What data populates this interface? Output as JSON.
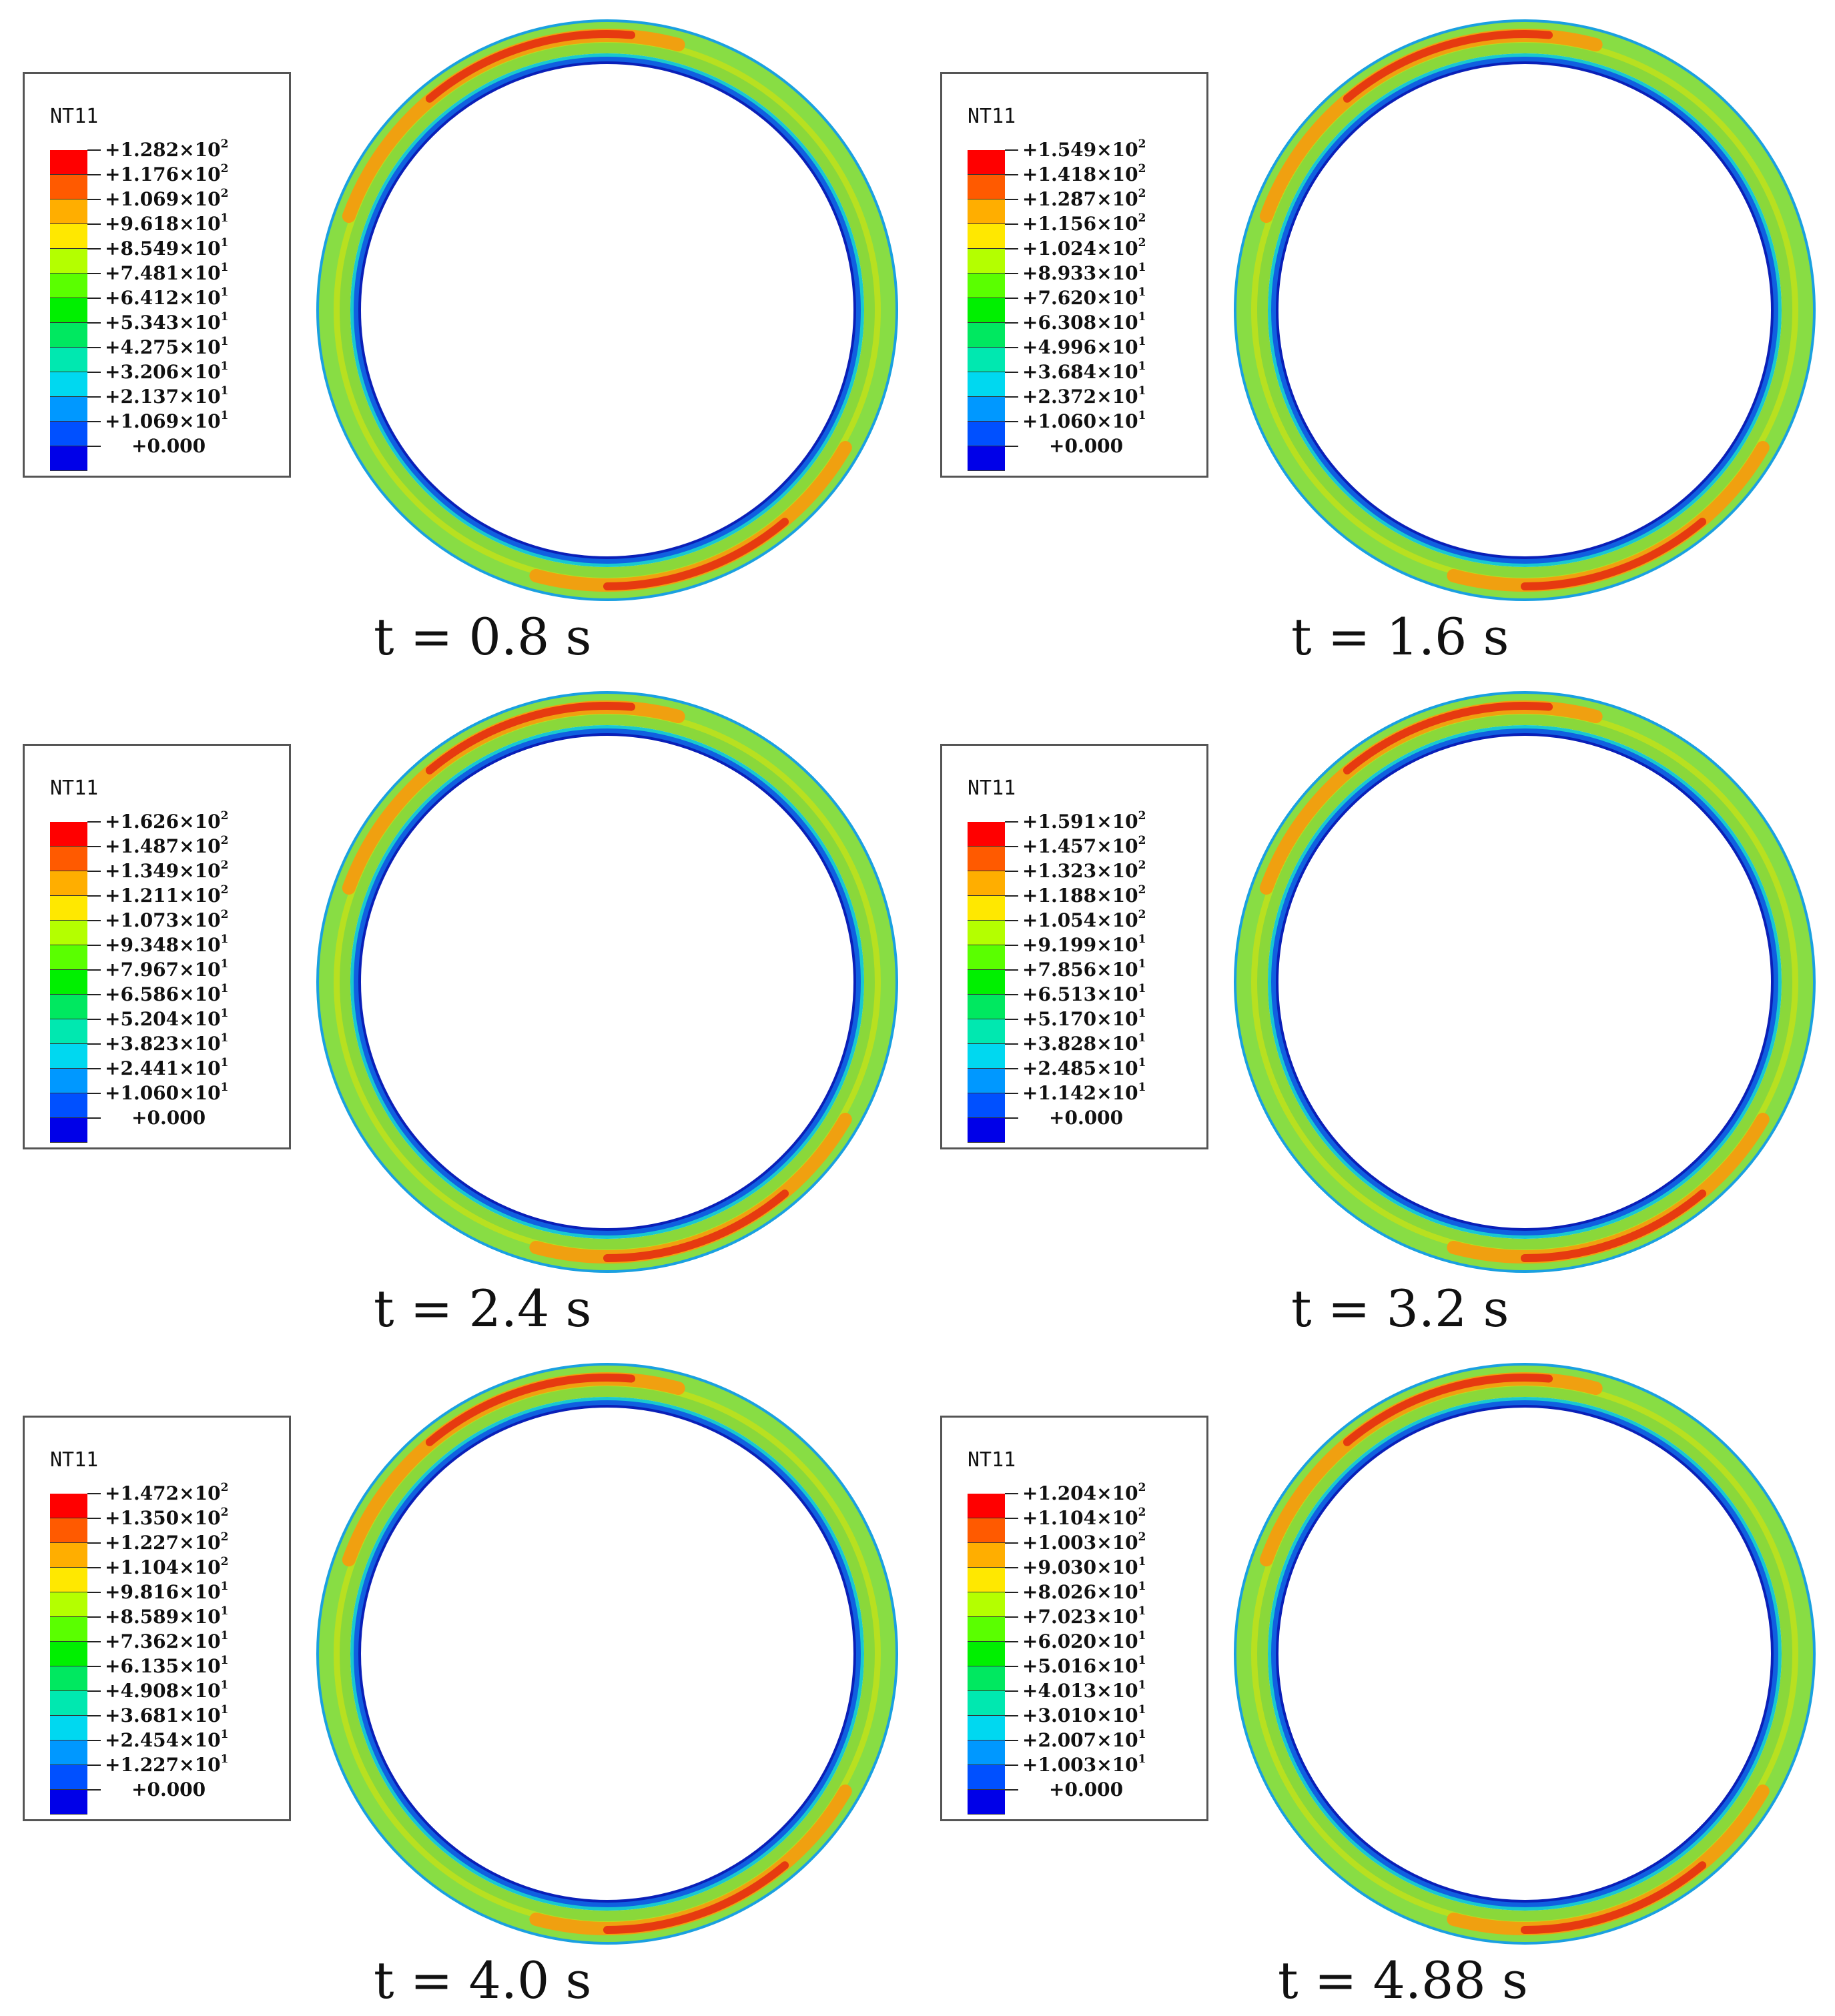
{
  "colors": {
    "legend_bands": [
      "#ff0000",
      "#ff5a00",
      "#ffae00",
      "#ffe800",
      "#b4ff00",
      "#5aff00",
      "#00f000",
      "#00e860",
      "#00e8b0",
      "#00d8f0",
      "#0098ff",
      "#0050ff",
      "#0000e8"
    ],
    "ring_base": "#7fdd3a"
  },
  "panels": [
    {
      "legend_title": "NT11",
      "time": "t = 0.8 s",
      "ticks": [
        {
          "m": "+1.282",
          "e": "2"
        },
        {
          "m": "+1.176",
          "e": "2"
        },
        {
          "m": "+1.069",
          "e": "2"
        },
        {
          "m": "+9.618",
          "e": "1"
        },
        {
          "m": "+8.549",
          "e": "1"
        },
        {
          "m": "+7.481",
          "e": "1"
        },
        {
          "m": "+6.412",
          "e": "1"
        },
        {
          "m": "+5.343",
          "e": "1"
        },
        {
          "m": "+4.275",
          "e": "1"
        },
        {
          "m": "+3.206",
          "e": "1"
        },
        {
          "m": "+2.137",
          "e": "1"
        },
        {
          "m": "+1.069",
          "e": "1"
        },
        {
          "m": "+0.000",
          "e": ""
        }
      ]
    },
    {
      "legend_title": "NT11",
      "time": "t = 1.6 s",
      "ticks": [
        {
          "m": "+1.549",
          "e": "2"
        },
        {
          "m": "+1.418",
          "e": "2"
        },
        {
          "m": "+1.287",
          "e": "2"
        },
        {
          "m": "+1.156",
          "e": "2"
        },
        {
          "m": "+1.024",
          "e": "2"
        },
        {
          "m": "+8.933",
          "e": "1"
        },
        {
          "m": "+7.620",
          "e": "1"
        },
        {
          "m": "+6.308",
          "e": "1"
        },
        {
          "m": "+4.996",
          "e": "1"
        },
        {
          "m": "+3.684",
          "e": "1"
        },
        {
          "m": "+2.372",
          "e": "1"
        },
        {
          "m": "+1.060",
          "e": "1"
        },
        {
          "m": "+0.000",
          "e": ""
        }
      ]
    },
    {
      "legend_title": "NT11",
      "time": "t = 2.4 s",
      "ticks": [
        {
          "m": "+1.626",
          "e": "2"
        },
        {
          "m": "+1.487",
          "e": "2"
        },
        {
          "m": "+1.349",
          "e": "2"
        },
        {
          "m": "+1.211",
          "e": "2"
        },
        {
          "m": "+1.073",
          "e": "2"
        },
        {
          "m": "+9.348",
          "e": "1"
        },
        {
          "m": "+7.967",
          "e": "1"
        },
        {
          "m": "+6.586",
          "e": "1"
        },
        {
          "m": "+5.204",
          "e": "1"
        },
        {
          "m": "+3.823",
          "e": "1"
        },
        {
          "m": "+2.441",
          "e": "1"
        },
        {
          "m": "+1.060",
          "e": "1"
        },
        {
          "m": "+0.000",
          "e": ""
        }
      ]
    },
    {
      "legend_title": "NT11",
      "time": "t = 3.2 s",
      "ticks": [
        {
          "m": "+1.591",
          "e": "2"
        },
        {
          "m": "+1.457",
          "e": "2"
        },
        {
          "m": "+1.323",
          "e": "2"
        },
        {
          "m": "+1.188",
          "e": "2"
        },
        {
          "m": "+1.054",
          "e": "2"
        },
        {
          "m": "+9.199",
          "e": "1"
        },
        {
          "m": "+7.856",
          "e": "1"
        },
        {
          "m": "+6.513",
          "e": "1"
        },
        {
          "m": "+5.170",
          "e": "1"
        },
        {
          "m": "+3.828",
          "e": "1"
        },
        {
          "m": "+2.485",
          "e": "1"
        },
        {
          "m": "+1.142",
          "e": "1"
        },
        {
          "m": "+0.000",
          "e": ""
        }
      ]
    },
    {
      "legend_title": "NT11",
      "time": "t = 4.0 s",
      "ticks": [
        {
          "m": "+1.472",
          "e": "2"
        },
        {
          "m": "+1.350",
          "e": "2"
        },
        {
          "m": "+1.227",
          "e": "2"
        },
        {
          "m": "+1.104",
          "e": "2"
        },
        {
          "m": "+9.816",
          "e": "1"
        },
        {
          "m": "+8.589",
          "e": "1"
        },
        {
          "m": "+7.362",
          "e": "1"
        },
        {
          "m": "+6.135",
          "e": "1"
        },
        {
          "m": "+4.908",
          "e": "1"
        },
        {
          "m": "+3.681",
          "e": "1"
        },
        {
          "m": "+2.454",
          "e": "1"
        },
        {
          "m": "+1.227",
          "e": "1"
        },
        {
          "m": "+0.000",
          "e": ""
        }
      ]
    },
    {
      "legend_title": "NT11",
      "time": "t = 4.88 s",
      "ticks": [
        {
          "m": "+1.204",
          "e": "2"
        },
        {
          "m": "+1.104",
          "e": "2"
        },
        {
          "m": "+1.003",
          "e": "2"
        },
        {
          "m": "+9.030",
          "e": "1"
        },
        {
          "m": "+8.026",
          "e": "1"
        },
        {
          "m": "+7.023",
          "e": "1"
        },
        {
          "m": "+6.020",
          "e": "1"
        },
        {
          "m": "+5.016",
          "e": "1"
        },
        {
          "m": "+4.013",
          "e": "1"
        },
        {
          "m": "+3.010",
          "e": "1"
        },
        {
          "m": "+2.007",
          "e": "1"
        },
        {
          "m": "+1.003",
          "e": "1"
        },
        {
          "m": "+0.000",
          "e": ""
        }
      ]
    }
  ]
}
